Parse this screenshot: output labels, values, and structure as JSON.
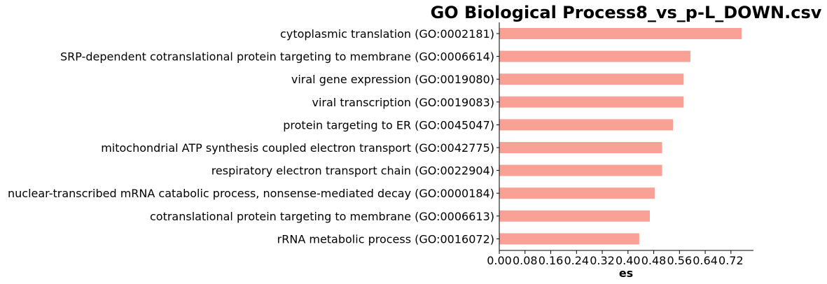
{
  "chart_data": {
    "type": "bar",
    "orientation": "horizontal",
    "title": "GO Biological Process8_vs_p-L_DOWN.csv",
    "xlabel": "es",
    "ylabel": "",
    "xlim": [
      0,
      0.79
    ],
    "xticks": [
      "0.00",
      "0.08",
      "0.16",
      "0.24",
      "0.32",
      "0.40",
      "0.48",
      "0.56",
      "0.64",
      "0.72"
    ],
    "bar_color": "#FAA196",
    "grid": false,
    "categories": [
      "cytoplasmic translation (GO:0002181)",
      "SRP-dependent cotranslational protein targeting to membrane (GO:0006614)",
      "viral gene expression (GO:0019080)",
      "viral transcription (GO:0019083)",
      "protein targeting to ER (GO:0045047)",
      "mitochondrial ATP synthesis coupled electron transport (GO:0042775)",
      "respiratory electron transport chain (GO:0022904)",
      "nuclear-transcribed mRNA catabolic process, nonsense-mediated decay (GO:0000184)",
      "cotranslational protein targeting to membrane (GO:0006613)",
      "rRNA metabolic process (GO:0016072)"
    ],
    "values": [
      0.753,
      0.594,
      0.573,
      0.573,
      0.54,
      0.506,
      0.506,
      0.483,
      0.468,
      0.435
    ]
  }
}
